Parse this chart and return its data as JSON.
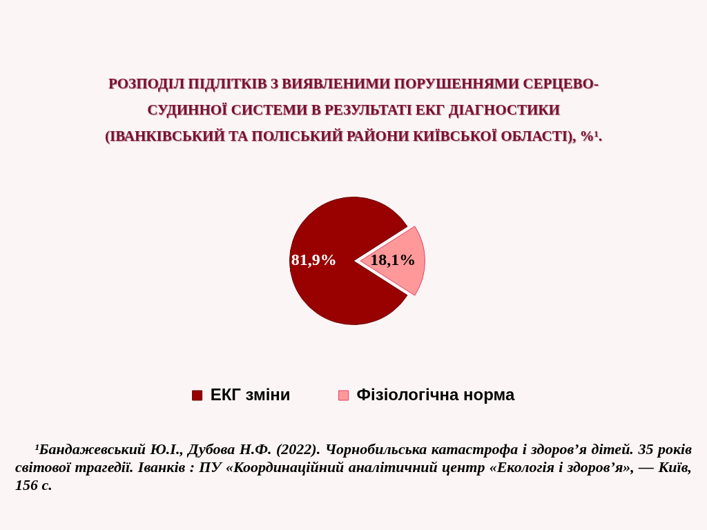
{
  "chart_data": {
    "type": "pie",
    "title": "РОЗПОДІЛ ПІДЛІТКІВ З ВИЯВЛЕНИМИ ПОРУШЕННЯМИ СЕРЦЕВО-СУДИННОЇ СИСТЕМИ В РЕЗУЛЬТАТІ ЕКГ ДІАГНОСТИКИ (ІВАНКІВСЬКИЙ ТА ПОЛІСЬКИЙ РАЙОНИ КИЇВСЬКОЇ ОБЛАСТІ), %¹.",
    "categories": [
      "ЕКГ зміни",
      "Фізіологічна норма"
    ],
    "values": [
      81.9,
      18.1
    ],
    "value_labels": [
      "81,9%",
      "18,1%"
    ],
    "colors": [
      "#990000",
      "#ff9999"
    ],
    "legend": "bottom",
    "annotations": [
      "¹Бандажевський Ю.І., Дубова Н.Ф. (2022). Чорнобильська катастрофа і здоров’я дітей. 35 років світової трагедії. Іванків : ПУ «Координаційний аналітичний центр «Екологія і здоров’я», — Київ, 156 с."
    ]
  }
}
